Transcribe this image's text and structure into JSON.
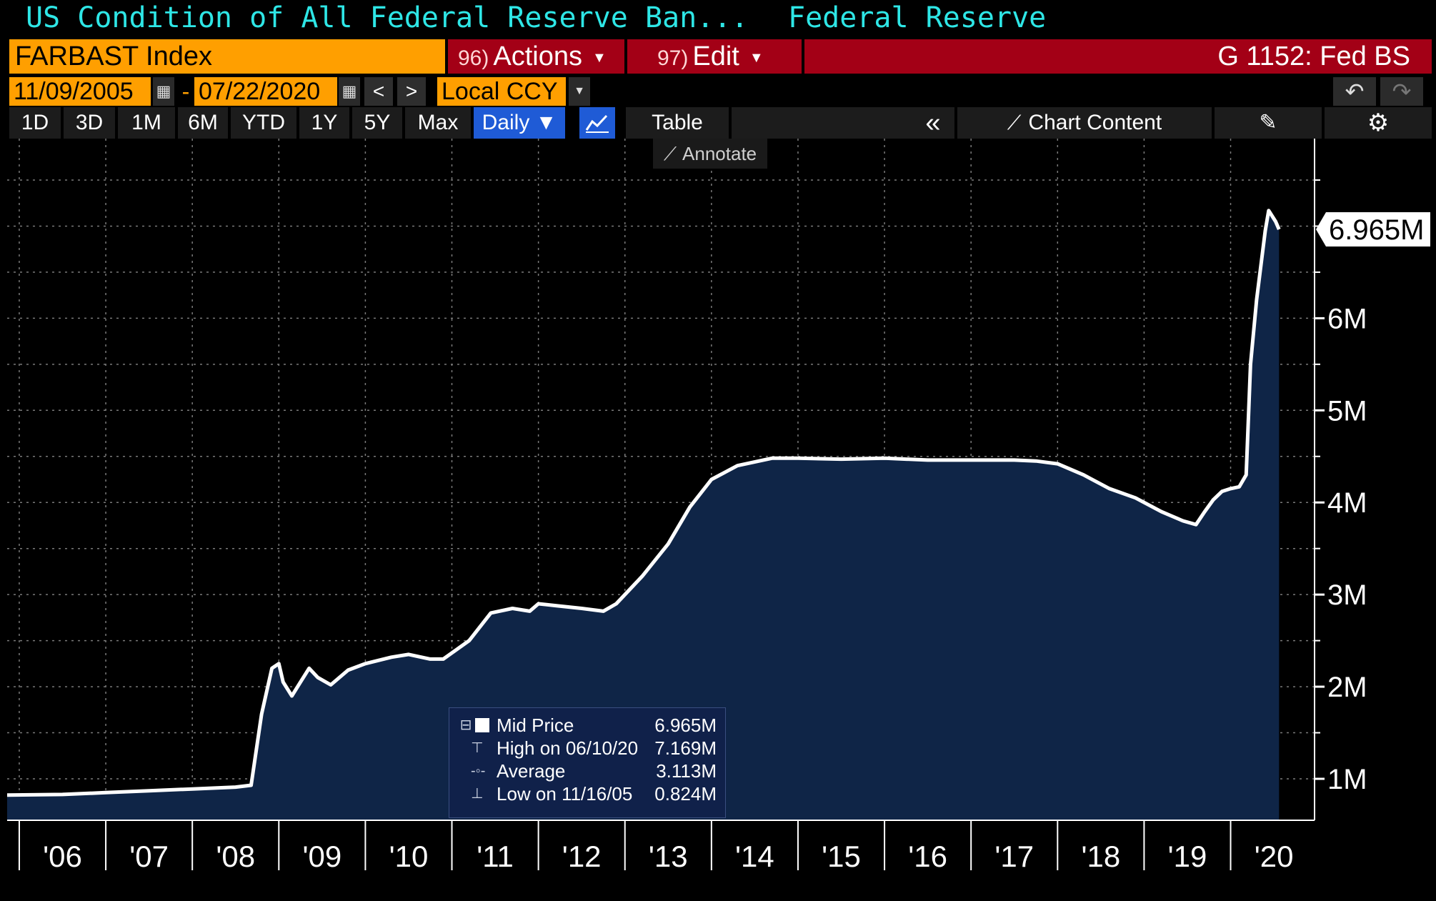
{
  "header": {
    "title": "US Condition of All Federal Reserve Ban...",
    "source": "Federal Reserve"
  },
  "command_bar": {
    "ticker": "FARBAST Index",
    "actions": {
      "num": "96)",
      "label": "Actions"
    },
    "edit": {
      "num": "97)",
      "label": "Edit"
    },
    "function": "G 1152: Fed BS"
  },
  "date_bar": {
    "start": "11/09/2005",
    "end": "07/22/2020",
    "separator": "-",
    "prev": "<",
    "next": ">",
    "currency": "Local CCY",
    "undo": "↶",
    "redo": "↷"
  },
  "range_bar": {
    "buttons": [
      "1D",
      "3D",
      "1M",
      "6M",
      "YTD",
      "1Y",
      "5Y",
      "Max"
    ],
    "frequency": "Daily ▼",
    "table": "Table",
    "collapse": "«",
    "chart_content": "Chart Content",
    "annotate": "Annotate"
  },
  "colors": {
    "background": "#000000",
    "area_fill": "#0f2547",
    "line": "#ffffff",
    "ticker_bg": "#ff9f00",
    "command_bg": "#a30016",
    "title_text": "#2ee6e6",
    "active_button": "#1f5bd6"
  },
  "chart_data": {
    "type": "area",
    "last_value_label": "6.965M",
    "ylim": [
      0.55,
      7.95
    ],
    "y_ticks": [
      1,
      2,
      3,
      4,
      5,
      6
    ],
    "y_tick_labels": [
      "1M",
      "2M",
      "3M",
      "4M",
      "5M",
      "6M"
    ],
    "xlim": [
      2005.86,
      2020.97
    ],
    "x_ticks": [
      2006,
      2007,
      2008,
      2009,
      2010,
      2011,
      2012,
      2013,
      2014,
      2015,
      2016,
      2017,
      2018,
      2019,
      2020
    ],
    "x_tick_labels": [
      "'06",
      "'07",
      "'08",
      "'09",
      "'10",
      "'11",
      "'12",
      "'13",
      "'14",
      "'15",
      "'16",
      "'17",
      "'18",
      "'19",
      "'20"
    ],
    "grid": true,
    "series": [
      {
        "x": [
          2005.86,
          2006.5,
          2007.0,
          2007.5,
          2008.0,
          2008.5,
          2008.68,
          2008.8,
          2008.92,
          2009.0,
          2009.05,
          2009.15,
          2009.25,
          2009.35,
          2009.45,
          2009.6,
          2009.8,
          2010.0,
          2010.3,
          2010.5,
          2010.75,
          2010.9,
          2011.2,
          2011.45,
          2011.7,
          2011.9,
          2012.0,
          2012.2,
          2012.5,
          2012.75,
          2012.9,
          2013.2,
          2013.5,
          2013.75,
          2014.0,
          2014.3,
          2014.7,
          2015.0,
          2015.5,
          2016.0,
          2016.5,
          2017.0,
          2017.5,
          2017.75,
          2018.0,
          2018.3,
          2018.6,
          2018.9,
          2019.2,
          2019.45,
          2019.6,
          2019.7,
          2019.8,
          2019.9,
          2020.0,
          2020.1,
          2020.18,
          2020.23,
          2020.3,
          2020.4,
          2020.44,
          2020.52,
          2020.56
        ],
        "values": [
          0.824,
          0.83,
          0.85,
          0.87,
          0.89,
          0.91,
          0.93,
          1.7,
          2.2,
          2.25,
          2.05,
          1.9,
          2.05,
          2.2,
          2.1,
          2.02,
          2.18,
          2.25,
          2.32,
          2.35,
          2.3,
          2.3,
          2.5,
          2.8,
          2.85,
          2.82,
          2.9,
          2.88,
          2.85,
          2.82,
          2.9,
          3.2,
          3.55,
          3.95,
          4.25,
          4.4,
          4.48,
          4.48,
          4.47,
          4.48,
          4.46,
          4.46,
          4.46,
          4.45,
          4.42,
          4.3,
          4.15,
          4.05,
          3.9,
          3.8,
          3.76,
          3.9,
          4.03,
          4.12,
          4.15,
          4.17,
          4.3,
          5.5,
          6.2,
          6.95,
          7.169,
          7.05,
          6.965
        ]
      }
    ],
    "legend": [
      {
        "label": "Mid Price",
        "value": "6.965M"
      },
      {
        "label": "High on 06/10/20",
        "value": "7.169M"
      },
      {
        "label": "Average",
        "value": "3.113M"
      },
      {
        "label": "Low on 11/16/05",
        "value": "0.824M"
      }
    ],
    "legend_position": "bottom-center"
  }
}
